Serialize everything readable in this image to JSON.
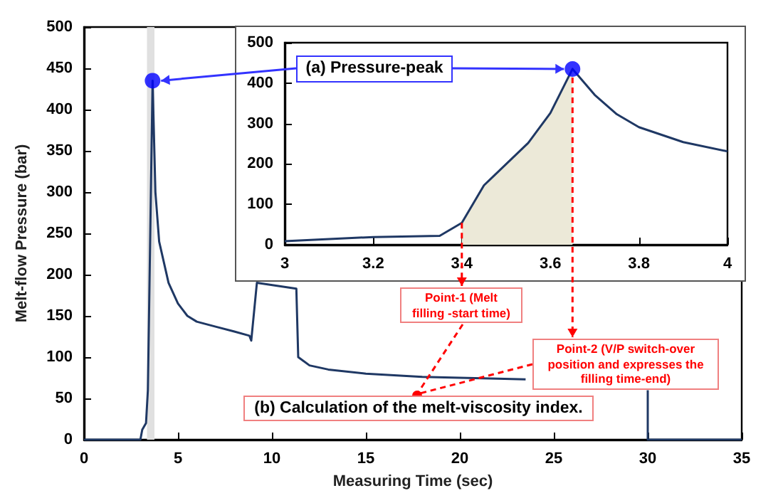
{
  "chart_data": [
    {
      "type": "line",
      "xlabel": "Measuring Time (sec)",
      "ylabel": "Melt-flow Pressure (bar)",
      "xlim": [
        0,
        35
      ],
      "xticks": [
        0,
        5,
        10,
        15,
        20,
        25,
        30,
        35
      ],
      "ylim": [
        0,
        500
      ],
      "yticks": [
        0,
        50,
        100,
        150,
        200,
        250,
        300,
        350,
        400,
        450,
        500
      ],
      "grid": false,
      "marker": "none",
      "bands": [
        {
          "axis": "x",
          "from": 3.35,
          "to": 3.75,
          "color": "#e0e0e0"
        }
      ],
      "series": [
        {
          "color": "#1f3864",
          "x": [
            0,
            3,
            3.1,
            3.3,
            3.4,
            3.65,
            3.8,
            4,
            4.5,
            5,
            5.5,
            6,
            7,
            8,
            8.8,
            8.9,
            9.2,
            11.3,
            11.4,
            12,
            13,
            15,
            18,
            22,
            23.5,
            27,
            30,
            30,
            35
          ],
          "values": [
            0,
            0,
            12,
            20,
            60,
            435,
            300,
            240,
            190,
            165,
            150,
            143,
            137,
            131,
            126,
            120,
            190,
            183,
            100,
            90,
            85,
            80,
            76,
            74,
            73,
            null,
            60,
            0,
            0
          ]
        },
        {
          "type": "scatter",
          "marker": "circle",
          "color": "#0000ff",
          "x": [
            3.65
          ],
          "values": [
            435
          ]
        }
      ],
      "annotations": [
        "(b) Calculation of the melt-viscosity index.",
        "Point-1 (Melt filling -start time)",
        "Point-2 (V/P switch-over position and expresses the filling time-end)"
      ]
    },
    {
      "type": "line",
      "xlim": [
        3,
        4
      ],
      "xticks": [
        3,
        3.2,
        3.4,
        3.6,
        3.8,
        4
      ],
      "ylim": [
        0,
        500
      ],
      "yticks": [
        0,
        100,
        200,
        300,
        400,
        500
      ],
      "grid": false,
      "marker": "none",
      "series": [
        {
          "type": "area",
          "color": "#ece9d8",
          "x": [
            3.4,
            3.45,
            3.55,
            3.6,
            3.65
          ],
          "values": [
            54,
            147,
            252,
            326,
            435
          ]
        },
        {
          "color": "#1f3864",
          "x": [
            3,
            3.2,
            3.35,
            3.4,
            3.45,
            3.55,
            3.6,
            3.65,
            3.7,
            3.75,
            3.8,
            3.9,
            4
          ],
          "values": [
            9,
            19,
            22,
            54,
            147,
            252,
            326,
            435,
            371,
            323,
            291,
            254,
            231
          ]
        },
        {
          "type": "scatter",
          "marker": "circle",
          "color": "#0000ff",
          "x": [
            3.65
          ],
          "values": [
            435
          ]
        }
      ],
      "annotations": [
        {
          "text": "(a) Pressure-peak",
          "x": 3.65,
          "y": 435
        }
      ]
    }
  ]
}
